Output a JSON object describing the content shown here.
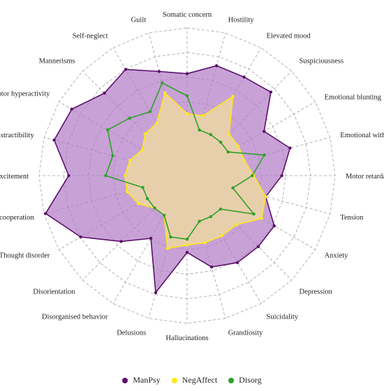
{
  "chart_data": {
    "type": "radar",
    "axes": [
      "Somatic concern",
      "Hostility",
      "Elevated mood",
      "Suspiciousness",
      "Emotional blunting",
      "Emotional withdrawal",
      "Motor retardation",
      "Tension",
      "Anxiety",
      "Depression",
      "Suicidality",
      "Grandiosity",
      "Hallucinations",
      "Delusions",
      "Disorganised behavior",
      "Disorientation",
      "Thought disorder",
      "Uncooperation",
      "Excitement",
      "Distractibility",
      "Motor hyperactivity",
      "Mannerisms",
      "Self-neglect",
      "Guilt"
    ],
    "range": [
      0,
      1
    ],
    "rings": 6,
    "inner_fill": "#e8cfab",
    "series": [
      {
        "name": "ManPsy",
        "color": "#5c0f6b",
        "fill": "#b07ac4",
        "values": [
          0.69,
          0.77,
          0.77,
          0.8,
          0.6,
          0.72,
          0.64,
          0.55,
          0.68,
          0.68,
          0.68,
          0.64,
          0.52,
          0.82,
          0.49,
          0.63,
          0.83,
          0.99,
          0.8,
          0.93,
          0.9,
          0.79,
          0.83,
          0.73
        ]
      },
      {
        "name": "NegAffect",
        "color": "#ffe81a",
        "values": [
          0.42,
          0.42,
          0.62,
          0.4,
          0.4,
          0.4,
          0.45,
          0.55,
          0.58,
          0.47,
          0.47,
          0.47,
          0.47,
          0.51,
          0.31,
          0.31,
          0.38,
          0.42,
          0.42,
          0.4,
          0.35,
          0.4,
          0.41,
          0.58
        ]
      },
      {
        "name": "Disorg",
        "color": "#2fa02a",
        "values": [
          0.54,
          0.32,
          0.32,
          0.32,
          0.32,
          0.54,
          0.44,
          0.32,
          0.52,
          0.32,
          0.32,
          0.32,
          0.43,
          0.43,
          0.31,
          0.31,
          0.31,
          0.31,
          0.55,
          0.52,
          0.62,
          0.55,
          0.5,
          0.65
        ]
      }
    ]
  }
}
